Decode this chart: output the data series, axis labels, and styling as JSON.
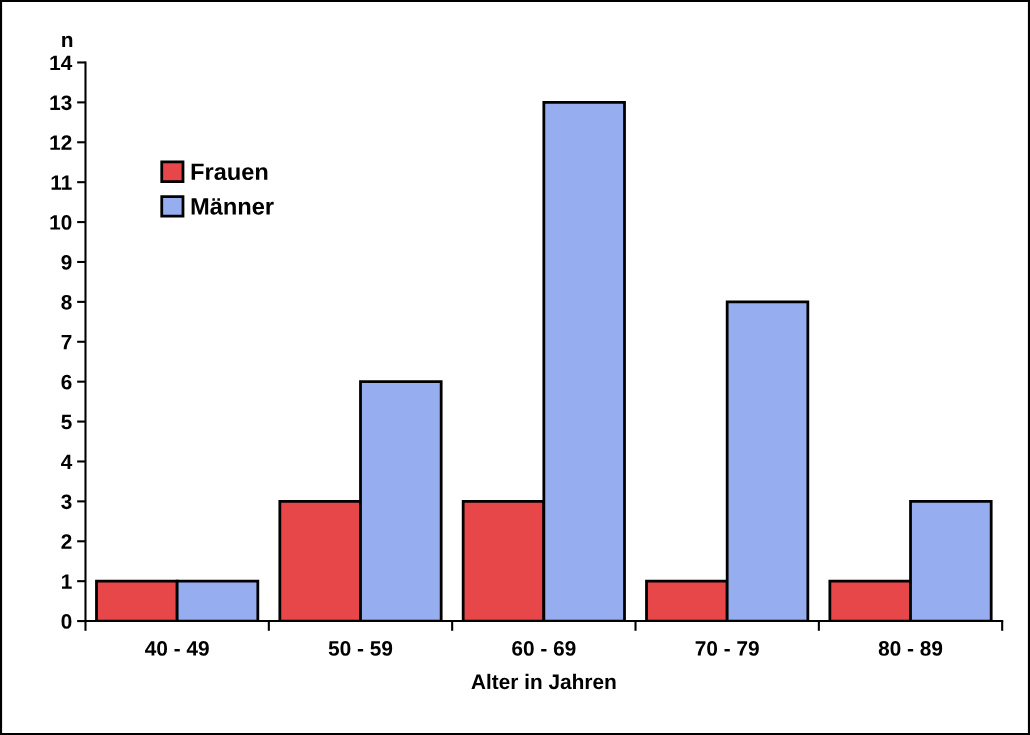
{
  "chart_data": {
    "type": "bar",
    "xlabel": "Alter in Jahren",
    "ylabel": "n",
    "categories": [
      "40 - 49",
      "50 - 59",
      "60 - 69",
      "70 - 79",
      "80 - 89"
    ],
    "series": [
      {
        "name": "Frauen",
        "color": "#e8474a",
        "values": [
          1,
          3,
          3,
          1,
          1
        ]
      },
      {
        "name": "Männer",
        "color": "#96aef0",
        "values": [
          1,
          6,
          13,
          8,
          3
        ]
      }
    ],
    "ylim": [
      0,
      14
    ],
    "yticks": [
      0,
      1,
      2,
      3,
      4,
      5,
      6,
      7,
      8,
      9,
      10,
      11,
      12,
      13,
      14
    ],
    "grid": false,
    "legend": "top left"
  }
}
